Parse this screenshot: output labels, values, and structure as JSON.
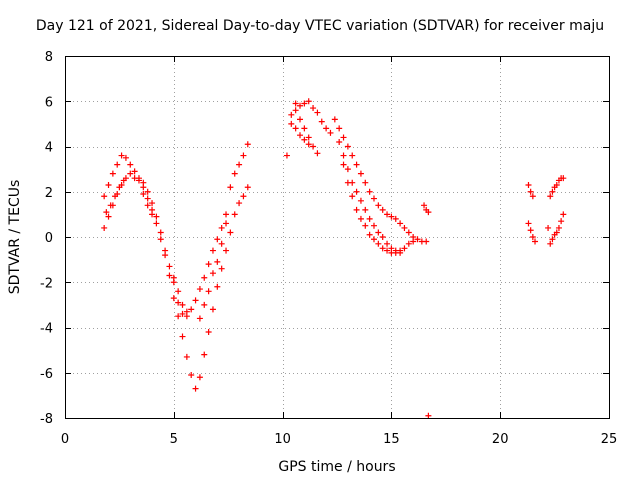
{
  "chart_data": {
    "type": "scatter",
    "title": "Day 121 of 2021, Sidereal Day-to-day VTEC variation (SDTVAR) for receiver maju",
    "xlabel": "GPS time / hours",
    "ylabel": "SDTVAR / TECUs",
    "xlim": [
      0,
      25
    ],
    "ylim": [
      -8,
      8
    ],
    "xticks": [
      0,
      5,
      10,
      15,
      20,
      25
    ],
    "yticks": [
      -8,
      -6,
      -4,
      -2,
      0,
      2,
      4,
      6,
      8
    ],
    "grid": true,
    "marker": "+",
    "color": "#ff0000",
    "series": [
      {
        "points": [
          [
            1.8,
            0.4
          ],
          [
            2.0,
            0.9
          ],
          [
            2.2,
            1.4
          ],
          [
            2.4,
            1.9
          ],
          [
            2.6,
            2.3
          ],
          [
            2.8,
            2.6
          ],
          [
            3.0,
            2.8
          ],
          [
            3.2,
            2.6
          ],
          [
            3.4,
            2.5
          ],
          [
            3.6,
            2.2
          ],
          [
            3.8,
            1.7
          ],
          [
            4.0,
            1.2
          ],
          [
            4.2,
            0.6
          ],
          [
            4.4,
            -0.1
          ],
          [
            4.6,
            -0.8
          ],
          [
            4.8,
            -1.7
          ],
          [
            5.0,
            -2.7
          ],
          [
            5.2,
            -3.5
          ],
          [
            5.4,
            -4.4
          ],
          [
            5.6,
            -5.3
          ],
          [
            5.8,
            -6.1
          ],
          [
            6.0,
            -6.7
          ],
          [
            6.2,
            -6.2
          ],
          [
            6.4,
            -5.2
          ],
          [
            6.6,
            -4.2
          ],
          [
            6.8,
            -3.2
          ],
          [
            7.0,
            -2.2
          ],
          [
            7.2,
            -1.4
          ],
          [
            7.4,
            -0.6
          ],
          [
            7.6,
            0.2
          ],
          [
            7.8,
            1.0
          ],
          [
            8.0,
            1.5
          ],
          [
            8.2,
            1.8
          ],
          [
            8.4,
            2.2
          ]
        ]
      },
      {
        "points": [
          [
            1.8,
            1.8
          ],
          [
            2.0,
            2.3
          ],
          [
            2.2,
            2.8
          ],
          [
            2.4,
            3.2
          ],
          [
            2.6,
            3.6
          ],
          [
            2.8,
            3.5
          ],
          [
            3.0,
            3.2
          ],
          [
            3.2,
            2.9
          ],
          [
            3.4,
            2.6
          ],
          [
            3.6,
            2.4
          ],
          [
            3.8,
            2.0
          ],
          [
            4.0,
            1.5
          ],
          [
            4.2,
            0.9
          ],
          [
            4.4,
            0.2
          ],
          [
            4.6,
            -0.6
          ],
          [
            4.8,
            -1.3
          ],
          [
            5.0,
            -2.0
          ],
          [
            5.2,
            -2.9
          ],
          [
            5.4,
            -3.4
          ],
          [
            5.6,
            -3.5
          ],
          [
            5.8,
            -3.2
          ],
          [
            6.0,
            -2.8
          ],
          [
            6.2,
            -2.3
          ],
          [
            6.4,
            -1.8
          ],
          [
            6.6,
            -1.2
          ],
          [
            6.8,
            -0.6
          ],
          [
            7.0,
            -0.1
          ],
          [
            7.2,
            0.4
          ],
          [
            7.4,
            1.0
          ],
          [
            7.6,
            2.2
          ],
          [
            7.8,
            2.8
          ],
          [
            8.0,
            3.2
          ],
          [
            8.2,
            3.6
          ],
          [
            8.4,
            4.1
          ]
        ]
      },
      {
        "points": [
          [
            1.9,
            1.1
          ],
          [
            2.1,
            1.4
          ],
          [
            2.3,
            1.8
          ],
          [
            2.5,
            2.2
          ],
          [
            2.7,
            2.5
          ],
          [
            3.6,
            1.9
          ],
          [
            3.8,
            1.4
          ],
          [
            4.0,
            1.0
          ],
          [
            5.0,
            -1.8
          ],
          [
            5.2,
            -2.4
          ],
          [
            5.4,
            -3.0
          ],
          [
            5.6,
            -3.3
          ],
          [
            6.2,
            -3.6
          ],
          [
            6.4,
            -3.0
          ],
          [
            6.6,
            -2.4
          ],
          [
            6.8,
            -1.6
          ],
          [
            7.0,
            -1.1
          ],
          [
            7.2,
            -0.3
          ],
          [
            7.4,
            0.6
          ]
        ]
      },
      {
        "points": [
          [
            10.2,
            3.6
          ],
          [
            10.4,
            5.4
          ],
          [
            10.6,
            5.6
          ],
          [
            10.8,
            5.2
          ],
          [
            11.0,
            4.8
          ],
          [
            11.2,
            4.4
          ],
          [
            11.4,
            4.0
          ],
          [
            11.6,
            3.7
          ],
          [
            10.4,
            5.0
          ],
          [
            10.6,
            4.8
          ],
          [
            10.8,
            4.5
          ],
          [
            11.0,
            4.3
          ],
          [
            11.2,
            4.1
          ]
        ]
      },
      {
        "points": [
          [
            10.6,
            5.9
          ],
          [
            10.8,
            5.8
          ],
          [
            11.0,
            5.9
          ],
          [
            11.2,
            6.0
          ],
          [
            11.4,
            5.7
          ],
          [
            11.6,
            5.5
          ],
          [
            11.8,
            5.1
          ],
          [
            12.0,
            4.8
          ],
          [
            12.2,
            4.6
          ]
        ]
      },
      {
        "points": [
          [
            12.4,
            5.2
          ],
          [
            12.6,
            4.8
          ],
          [
            12.8,
            4.4
          ],
          [
            13.0,
            4.0
          ],
          [
            13.2,
            3.6
          ],
          [
            13.4,
            3.2
          ],
          [
            13.6,
            2.8
          ],
          [
            13.8,
            2.4
          ],
          [
            14.0,
            2.0
          ],
          [
            14.2,
            1.7
          ],
          [
            14.4,
            1.4
          ],
          [
            14.6,
            1.2
          ],
          [
            14.8,
            1.0
          ],
          [
            15.0,
            0.9
          ],
          [
            15.2,
            0.8
          ],
          [
            15.4,
            0.6
          ],
          [
            15.6,
            0.4
          ],
          [
            15.8,
            0.2
          ],
          [
            16.0,
            0.0
          ],
          [
            16.2,
            -0.1
          ],
          [
            16.4,
            -0.2
          ],
          [
            16.6,
            -0.2
          ]
        ]
      },
      {
        "points": [
          [
            12.6,
            4.2
          ],
          [
            12.8,
            3.6
          ],
          [
            13.0,
            3.0
          ],
          [
            13.2,
            2.4
          ],
          [
            13.4,
            2.0
          ],
          [
            13.6,
            1.6
          ],
          [
            13.8,
            1.2
          ],
          [
            14.0,
            0.8
          ],
          [
            14.2,
            0.5
          ],
          [
            14.4,
            0.2
          ],
          [
            14.6,
            0.0
          ],
          [
            14.8,
            -0.3
          ],
          [
            15.0,
            -0.5
          ],
          [
            15.2,
            -0.6
          ],
          [
            15.4,
            -0.6
          ],
          [
            15.6,
            -0.5
          ],
          [
            15.8,
            -0.3
          ],
          [
            16.0,
            -0.2
          ]
        ]
      },
      {
        "points": [
          [
            12.8,
            3.2
          ],
          [
            13.0,
            2.4
          ],
          [
            13.2,
            1.8
          ],
          [
            13.4,
            1.2
          ],
          [
            13.6,
            0.8
          ],
          [
            13.8,
            0.5
          ],
          [
            14.0,
            0.1
          ],
          [
            14.2,
            -0.1
          ],
          [
            14.4,
            -0.3
          ],
          [
            14.6,
            -0.5
          ],
          [
            14.8,
            -0.6
          ],
          [
            15.0,
            -0.7
          ],
          [
            15.2,
            -0.7
          ],
          [
            15.4,
            -0.7
          ]
        ]
      },
      {
        "points": [
          [
            16.5,
            1.4
          ],
          [
            16.6,
            1.2
          ],
          [
            16.7,
            1.1
          ],
          [
            16.7,
            -7.9
          ]
        ]
      },
      {
        "points": [
          [
            21.3,
            2.3
          ],
          [
            21.4,
            2.0
          ],
          [
            21.5,
            1.8
          ],
          [
            21.3,
            0.6
          ],
          [
            21.4,
            0.3
          ],
          [
            21.5,
            0.0
          ],
          [
            21.6,
            -0.2
          ]
        ]
      },
      {
        "points": [
          [
            22.2,
            0.4
          ],
          [
            22.3,
            1.8
          ],
          [
            22.4,
            2.0
          ],
          [
            22.5,
            2.2
          ],
          [
            22.6,
            2.3
          ],
          [
            22.7,
            2.5
          ],
          [
            22.8,
            2.6
          ],
          [
            22.9,
            2.6
          ],
          [
            22.3,
            -0.3
          ],
          [
            22.4,
            -0.1
          ],
          [
            22.5,
            0.1
          ],
          [
            22.6,
            0.2
          ],
          [
            22.7,
            0.4
          ],
          [
            22.8,
            0.7
          ],
          [
            22.9,
            1.0
          ]
        ]
      }
    ]
  }
}
